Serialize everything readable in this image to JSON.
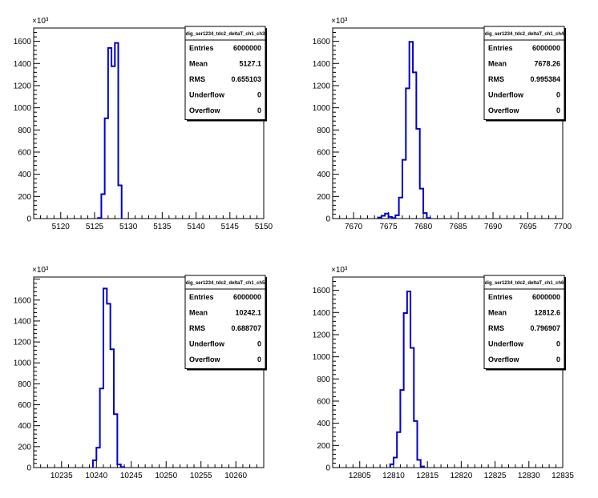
{
  "chart_data": [
    {
      "type": "histogram",
      "exponent_label": "×10³",
      "xlim": [
        5116,
        5150
      ],
      "ylim": [
        0,
        1720
      ],
      "x_ticks": [
        5120,
        5125,
        5130,
        5135,
        5140,
        5145,
        5150
      ],
      "y_ticks": [
        0,
        200,
        400,
        600,
        800,
        1000,
        1200,
        1400,
        1600
      ],
      "line_color": "#0000cc",
      "stats": {
        "title": "dig_ser1234_tdc2_deltaT_ch1_ch3",
        "rows": [
          {
            "label": "Entries",
            "value": "6000000"
          },
          {
            "label": "Mean",
            "value": "5127.1"
          },
          {
            "label": "RMS",
            "value": "0.655103"
          },
          {
            "label": "Underflow",
            "value": "0"
          },
          {
            "label": "Overflow",
            "value": "0"
          }
        ]
      },
      "bin_edges": [
        5125.5,
        5126,
        5126.5,
        5127,
        5127.5,
        5128,
        5128.5,
        5129
      ],
      "counts": [
        5,
        220,
        905,
        1540,
        1375,
        1585,
        300
      ]
    },
    {
      "type": "histogram",
      "exponent_label": "×10³",
      "xlim": [
        7667,
        7700
      ],
      "ylim": [
        0,
        1720
      ],
      "x_ticks": [
        7670,
        7675,
        7680,
        7685,
        7690,
        7695,
        7700
      ],
      "y_ticks": [
        0,
        200,
        400,
        600,
        800,
        1000,
        1200,
        1400,
        1600
      ],
      "line_color": "#0000cc",
      "stats": {
        "title": "dig_ser1234_tdc2_deltaT_ch1_ch4",
        "rows": [
          {
            "label": "Entries",
            "value": "6000000"
          },
          {
            "label": "Mean",
            "value": "7678.26"
          },
          {
            "label": "RMS",
            "value": "0.995384"
          },
          {
            "label": "Underflow",
            "value": "0"
          },
          {
            "label": "Overflow",
            "value": "0"
          }
        ]
      },
      "bin_edges": [
        7673.5,
        7674,
        7674.5,
        7675,
        7675.5,
        7676,
        7676.5,
        7677,
        7677.5,
        7678,
        7678.5,
        7679,
        7679.5,
        7680,
        7680.5,
        7681
      ],
      "counts": [
        10,
        25,
        45,
        15,
        5,
        30,
        190,
        530,
        1175,
        1595,
        1320,
        810,
        270,
        50,
        5
      ]
    },
    {
      "type": "histogram",
      "exponent_label": "×10³",
      "xlim": [
        10231,
        10264
      ],
      "ylim": [
        0,
        1820
      ],
      "x_ticks": [
        10235,
        10240,
        10245,
        10250,
        10255,
        10260
      ],
      "y_ticks": [
        0,
        200,
        400,
        600,
        800,
        1000,
        1200,
        1400,
        1600
      ],
      "line_color": "#0000cc",
      "stats": {
        "title": "dig_ser1234_tdc2_deltaT_ch1_ch5",
        "rows": [
          {
            "label": "Entries",
            "value": "6000000"
          },
          {
            "label": "Mean",
            "value": "10242.1"
          },
          {
            "label": "RMS",
            "value": "0.688707"
          },
          {
            "label": "Underflow",
            "value": "0"
          },
          {
            "label": "Overflow",
            "value": "0"
          }
        ]
      },
      "bin_edges": [
        10239.5,
        10240,
        10240.5,
        10241,
        10241.5,
        10242,
        10242.5,
        10243,
        10243.5,
        10244
      ],
      "counts": [
        70,
        190,
        755,
        1710,
        1565,
        1130,
        510,
        30,
        5
      ]
    },
    {
      "type": "histogram",
      "exponent_label": "×10³",
      "xlim": [
        12801,
        12835
      ],
      "ylim": [
        0,
        1720
      ],
      "x_ticks": [
        12805,
        12810,
        12815,
        12820,
        12825,
        12830,
        12835
      ],
      "y_ticks": [
        0,
        200,
        400,
        600,
        800,
        1000,
        1200,
        1400,
        1600
      ],
      "line_color": "#0000cc",
      "stats": {
        "title": "dig_ser1234_tdc2_deltaT_ch1_ch6",
        "rows": [
          {
            "label": "Entries",
            "value": "6000000"
          },
          {
            "label": "Mean",
            "value": "12812.6"
          },
          {
            "label": "RMS",
            "value": "0.796907"
          },
          {
            "label": "Underflow",
            "value": "0"
          },
          {
            "label": "Overflow",
            "value": "0"
          }
        ]
      },
      "bin_edges": [
        12809.5,
        12810,
        12810.5,
        12811,
        12811.5,
        12812,
        12812.5,
        12813,
        12813.5,
        12814,
        12814.5
      ],
      "counts": [
        30,
        90,
        320,
        700,
        1395,
        1590,
        1080,
        420,
        70,
        10
      ]
    }
  ]
}
